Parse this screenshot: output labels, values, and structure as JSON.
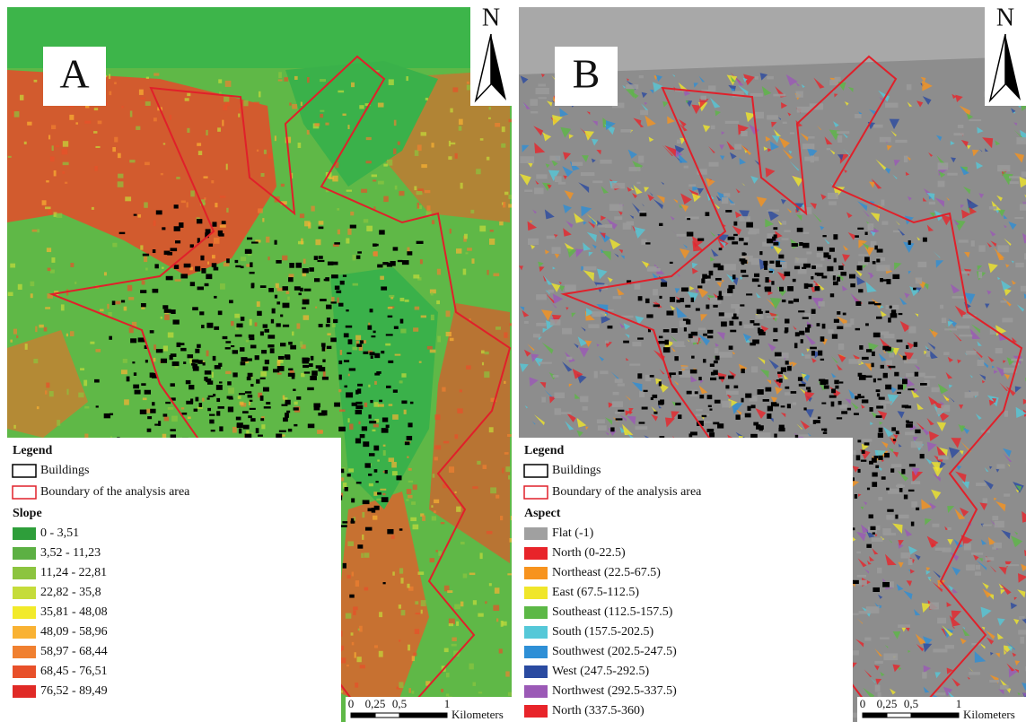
{
  "panels": [
    {
      "label": "A",
      "north": "N",
      "legend": {
        "title": "Legend",
        "items": [
          "Buildings",
          "Boundary of the analysis area"
        ],
        "class_title": "Slope",
        "classes": [
          {
            "label": "0 - 3,51",
            "color": "#2e9e3a"
          },
          {
            "label": "3,52 - 11,23",
            "color": "#5cb043"
          },
          {
            "label": "11,24 - 22,81",
            "color": "#8cc43f"
          },
          {
            "label": "22,82 - 35,8",
            "color": "#c5dc3a"
          },
          {
            "label": "35,81 - 48,08",
            "color": "#f2ea2a"
          },
          {
            "label": "48,09 - 58,96",
            "color": "#f9b233"
          },
          {
            "label": "58,97 - 68,44",
            "color": "#f08030"
          },
          {
            "label": "68,45 - 76,51",
            "color": "#e8502a"
          },
          {
            "label": "76,52 - 89,49",
            "color": "#e02a26"
          }
        ]
      },
      "scale": {
        "ticks": [
          "0",
          "0,25",
          "0,5",
          "1"
        ],
        "unit": "Kilometers"
      }
    },
    {
      "label": "B",
      "north": "N",
      "legend": {
        "title": "Legend",
        "items": [
          "Buildings",
          "Boundary of the analysis area"
        ],
        "class_title": "Aspect",
        "classes": [
          {
            "label": "Flat (-1)",
            "color": "#a0a0a0"
          },
          {
            "label": "North (0-22.5)",
            "color": "#e8242a"
          },
          {
            "label": "Northeast (22.5-67.5)",
            "color": "#f7931e"
          },
          {
            "label": "East (67.5-112.5)",
            "color": "#f0e62a"
          },
          {
            "label": "Southeast (112.5-157.5)",
            "color": "#5cb846"
          },
          {
            "label": "South (157.5-202.5)",
            "color": "#55c8d8"
          },
          {
            "label": "Southwest (202.5-247.5)",
            "color": "#2e8fd6"
          },
          {
            "label": "West (247.5-292.5)",
            "color": "#2a4aa0"
          },
          {
            "label": "Northwest (292.5-337.5)",
            "color": "#9b59b6"
          },
          {
            "label": "North (337.5-360)",
            "color": "#e8242a"
          }
        ]
      },
      "scale": {
        "ticks": [
          "0",
          "0,25",
          "0,5",
          "1"
        ],
        "unit": "Kilometers"
      }
    }
  ]
}
